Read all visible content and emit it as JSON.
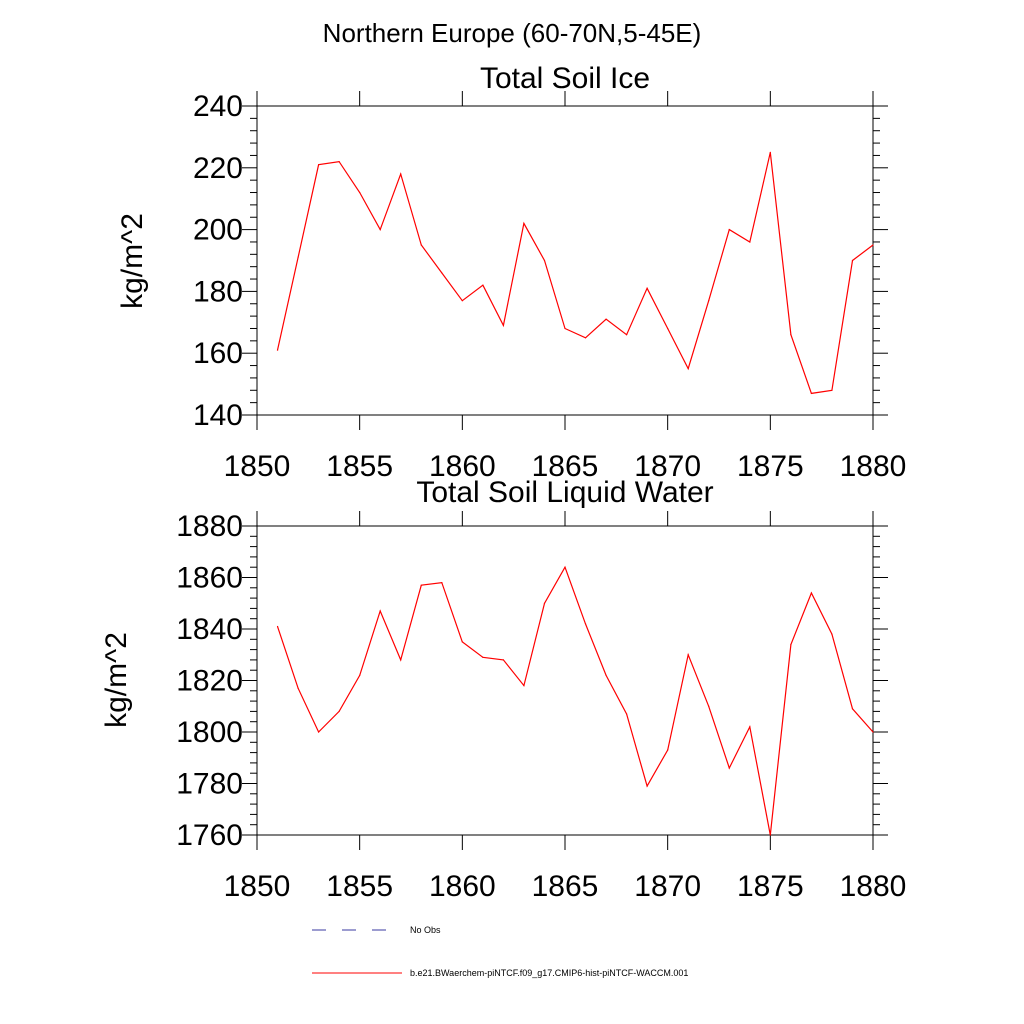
{
  "figure": {
    "suptitle": "Northern Europe (60-70N,5-45E)",
    "line_color": "#ff0000",
    "obs_color": "#3a3aa0",
    "legend": {
      "no_obs_label": "No Obs",
      "run_label": "b.e21.BWaerchem-piNTCF.f09_g17.CMIP6-hist-piNTCF-WACCM.001",
      "placement": "bottom-center"
    }
  },
  "chart_data": [
    {
      "type": "line",
      "title": "Total Soil Ice",
      "ylabel": "kg/m^2",
      "xlabel": "",
      "xlim": [
        1850,
        1880
      ],
      "ylim": [
        140,
        240
      ],
      "xticks": [
        "1850",
        "1855",
        "1860",
        "1865",
        "1870",
        "1875",
        "1880"
      ],
      "yticks": [
        "140",
        "160",
        "180",
        "200",
        "220",
        "240"
      ],
      "grid": false,
      "series": [
        {
          "name": "b.e21.BWaerchem-piNTCF.f09_g17.CMIP6-hist-piNTCF-WACCM.001",
          "x": [
            1851,
            1852,
            1853,
            1854,
            1855,
            1856,
            1857,
            1858,
            1859,
            1860,
            1861,
            1862,
            1863,
            1864,
            1865,
            1866,
            1867,
            1868,
            1869,
            1870,
            1871,
            1872,
            1873,
            1874,
            1875,
            1876,
            1877,
            1878,
            1879,
            1880
          ],
          "y": [
            161,
            191,
            221,
            222,
            212,
            200,
            218,
            195,
            186,
            177,
            182,
            169,
            202,
            190,
            168,
            165,
            171,
            166,
            181,
            168,
            155,
            177,
            200,
            196,
            225,
            166,
            147,
            148,
            190,
            195
          ]
        }
      ]
    },
    {
      "type": "line",
      "title": "Total Soil Liquid Water",
      "ylabel": "kg/m^2",
      "xlabel": "",
      "xlim": [
        1850,
        1880
      ],
      "ylim": [
        1760,
        1880
      ],
      "xticks": [
        "1850",
        "1855",
        "1860",
        "1865",
        "1870",
        "1875",
        "1880"
      ],
      "yticks": [
        "1760",
        "1780",
        "1800",
        "1820",
        "1840",
        "1860",
        "1880"
      ],
      "grid": false,
      "series": [
        {
          "name": "b.e21.BWaerchem-piNTCF.f09_g17.CMIP6-hist-piNTCF-WACCM.001",
          "x": [
            1851,
            1852,
            1853,
            1854,
            1855,
            1856,
            1857,
            1858,
            1859,
            1860,
            1861,
            1862,
            1863,
            1864,
            1865,
            1866,
            1867,
            1868,
            1869,
            1870,
            1871,
            1872,
            1873,
            1874,
            1875,
            1876,
            1877,
            1878,
            1879,
            1880
          ],
          "y": [
            1841,
            1817,
            1800,
            1808,
            1822,
            1847,
            1828,
            1857,
            1858,
            1835,
            1829,
            1828,
            1818,
            1850,
            1864,
            1842,
            1822,
            1807,
            1779,
            1793,
            1830,
            1810,
            1786,
            1802,
            1760,
            1834,
            1854,
            1838,
            1809,
            1800
          ]
        }
      ]
    }
  ]
}
